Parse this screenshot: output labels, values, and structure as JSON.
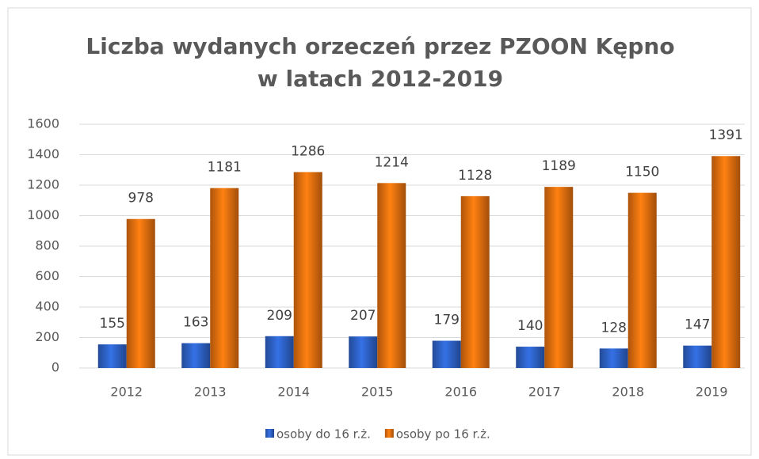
{
  "chart_data": {
    "type": "bar",
    "title": [
      "Liczba wydanych orzeczeń przez PZOON Kępno",
      "w latach 2012-2019"
    ],
    "categories": [
      "2012",
      "2013",
      "2014",
      "2015",
      "2016",
      "2017",
      "2018",
      "2019"
    ],
    "series": [
      {
        "name": "osoby do 16 r.ż.",
        "color": "#2e62c8",
        "values": [
          155,
          163,
          209,
          207,
          179,
          140,
          128,
          147
        ]
      },
      {
        "name": "osoby po 16 r.ż.",
        "color": "#e8700f",
        "values": [
          978,
          1181,
          1286,
          1214,
          1128,
          1189,
          1150,
          1391
        ]
      }
    ],
    "ylim": [
      0,
      1600
    ],
    "yticks": [
      0,
      200,
      400,
      600,
      800,
      1000,
      1200,
      1400,
      1600
    ],
    "grid": true,
    "legend": "bottom"
  }
}
